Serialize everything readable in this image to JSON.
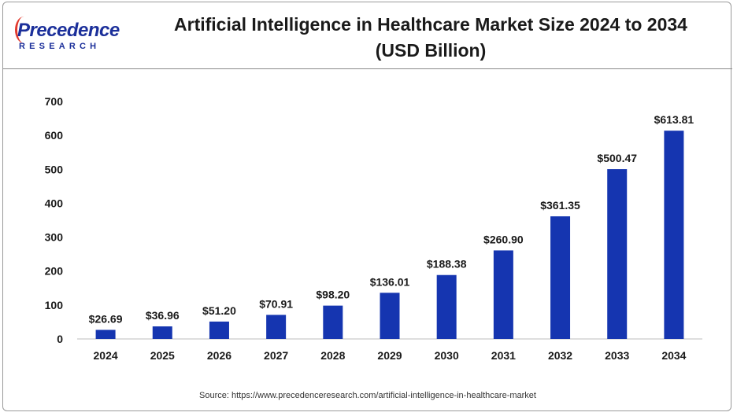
{
  "brand": {
    "name": "Precedence",
    "sub": "RESEARCH",
    "colors": {
      "primary": "#1b2f9a",
      "accent": "#e23a2e"
    }
  },
  "title_line1": "Artificial Intelligence in Healthcare Market Size 2024 to 2034",
  "title_line2": "(USD Billion)",
  "source": "Source: https://www.precedenceresearch.com/artificial-intelligence-in-healthcare-market",
  "chart_data": {
    "type": "bar",
    "title": "Artificial Intelligence in Healthcare Market Size 2024 to 2034 (USD Billion)",
    "categories": [
      "2024",
      "2025",
      "2026",
      "2027",
      "2028",
      "2029",
      "2030",
      "2031",
      "2032",
      "2033",
      "2034"
    ],
    "values": [
      26.69,
      36.96,
      51.2,
      70.91,
      98.2,
      136.01,
      188.38,
      260.9,
      361.35,
      500.47,
      613.81
    ],
    "data_labels": [
      "$26.69",
      "$36.96",
      "$51.20",
      "$70.91",
      "$98.20",
      "$136.01",
      "$188.38",
      "$260.90",
      "$361.35",
      "$500.47",
      "$613.81"
    ],
    "yticks": [
      "0",
      "100",
      "200",
      "300",
      "400",
      "500",
      "600",
      "700"
    ],
    "ylim": [
      0,
      700
    ],
    "xlabel": "",
    "ylabel": "",
    "grid": false,
    "legend": "none",
    "bar_color": "#1535b0"
  }
}
